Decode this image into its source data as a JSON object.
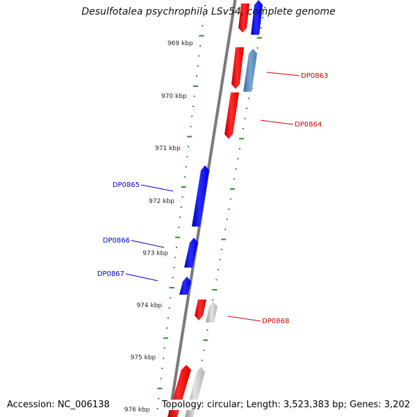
{
  "title": "Desulfotalea psychrophila LSv54, complete genome",
  "footer": {
    "accession": "Accession: NC_006138",
    "summary": "Topology: circular; Length: 3,523,383 bp; Genes: 3,202"
  },
  "colors": {
    "backbone": "#7a7a7a",
    "tick": "#2a8a2a",
    "forward_gene": "#e00000",
    "reverse_gene": "#0000ee",
    "cds_blue": "#4b7fb5",
    "cds_gray": "#b3b3b3",
    "forward_label": "#cc0000",
    "reverse_label": "#0000cc"
  },
  "scale_labels": [
    "969 kbp",
    "970 kbp",
    "971 kbp",
    "972 kbp",
    "973 kbp",
    "974 kbp",
    "975 kbp",
    "976 kbp"
  ],
  "gene_labels": [
    {
      "id": "DP0863",
      "strand": "forward"
    },
    {
      "id": "DP0864",
      "strand": "forward"
    },
    {
      "id": "DP0865",
      "strand": "reverse"
    },
    {
      "id": "DP0866",
      "strand": "reverse"
    },
    {
      "id": "DP0867",
      "strand": "reverse"
    },
    {
      "id": "DP0868",
      "strand": "forward"
    }
  ]
}
